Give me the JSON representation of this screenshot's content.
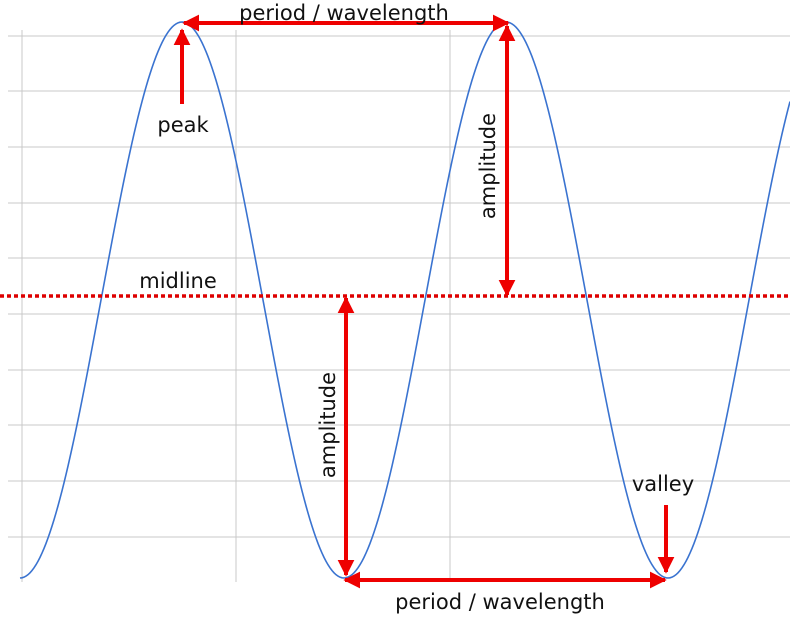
{
  "labels": {
    "period_top": "period  /  wavelength",
    "period_bottom": "period  /  wavelength",
    "peak": "peak",
    "valley": "valley",
    "midline": "midline",
    "amplitude_upper": "amplitude",
    "amplitude_lower": "amplitude"
  },
  "colors": {
    "wave": "#3a73d0",
    "arrows": "#ee0000",
    "midline": "#dd0000",
    "grid": "#c8c8c8",
    "text": "#111111"
  }
}
